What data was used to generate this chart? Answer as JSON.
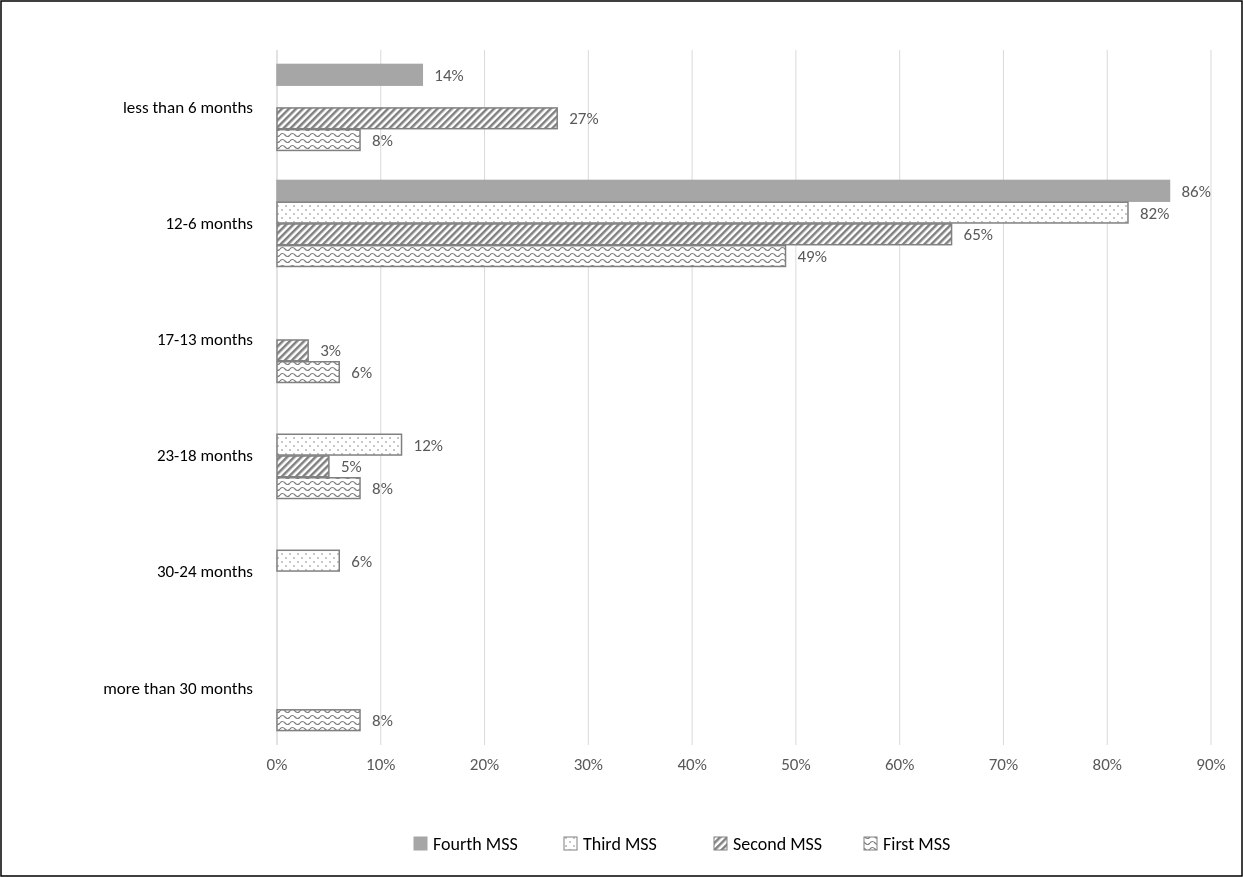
{
  "chart_data": {
    "type": "bar",
    "orientation": "horizontal",
    "categories": [
      "less than 6 months",
      "12-6 months",
      "17-13 months",
      "23-18 months",
      "30-24 months",
      "more than 30 months"
    ],
    "series": [
      {
        "name": "Fourth MSS",
        "color": "#a6a6a6",
        "values": [
          14,
          86,
          null,
          null,
          null,
          null
        ],
        "value_labels": [
          "14%",
          "86%",
          null,
          null,
          null,
          null
        ]
      },
      {
        "name": "Third MSS",
        "color": "#808080",
        "values": [
          null,
          82,
          null,
          12,
          6,
          null
        ],
        "value_labels": [
          null,
          "82%",
          null,
          "12%",
          "6%",
          null
        ]
      },
      {
        "name": "Second MSS",
        "color": "#808080",
        "values": [
          27,
          65,
          3,
          5,
          null,
          null
        ],
        "value_labels": [
          "27%",
          "65%",
          "3%",
          "5%",
          null,
          null
        ]
      },
      {
        "name": "First MSS",
        "color": "#808080",
        "values": [
          8,
          49,
          6,
          8,
          null,
          8
        ],
        "value_labels": [
          "8%",
          "49%",
          "6%",
          "8%",
          null,
          "8%"
        ]
      }
    ],
    "xlim": [
      0,
      90
    ],
    "xticks": [
      {
        "value": 0,
        "label": "0%"
      },
      {
        "value": 10,
        "label": "10%"
      },
      {
        "value": 20,
        "label": "20%"
      },
      {
        "value": 30,
        "label": "30%"
      },
      {
        "value": 40,
        "label": "40%"
      },
      {
        "value": 50,
        "label": "50%"
      },
      {
        "value": 60,
        "label": "60%"
      },
      {
        "value": 70,
        "label": "70%"
      },
      {
        "value": 80,
        "label": "80%"
      },
      {
        "value": 90,
        "label": "90%"
      }
    ],
    "grid": "x",
    "legend": "bottom"
  }
}
